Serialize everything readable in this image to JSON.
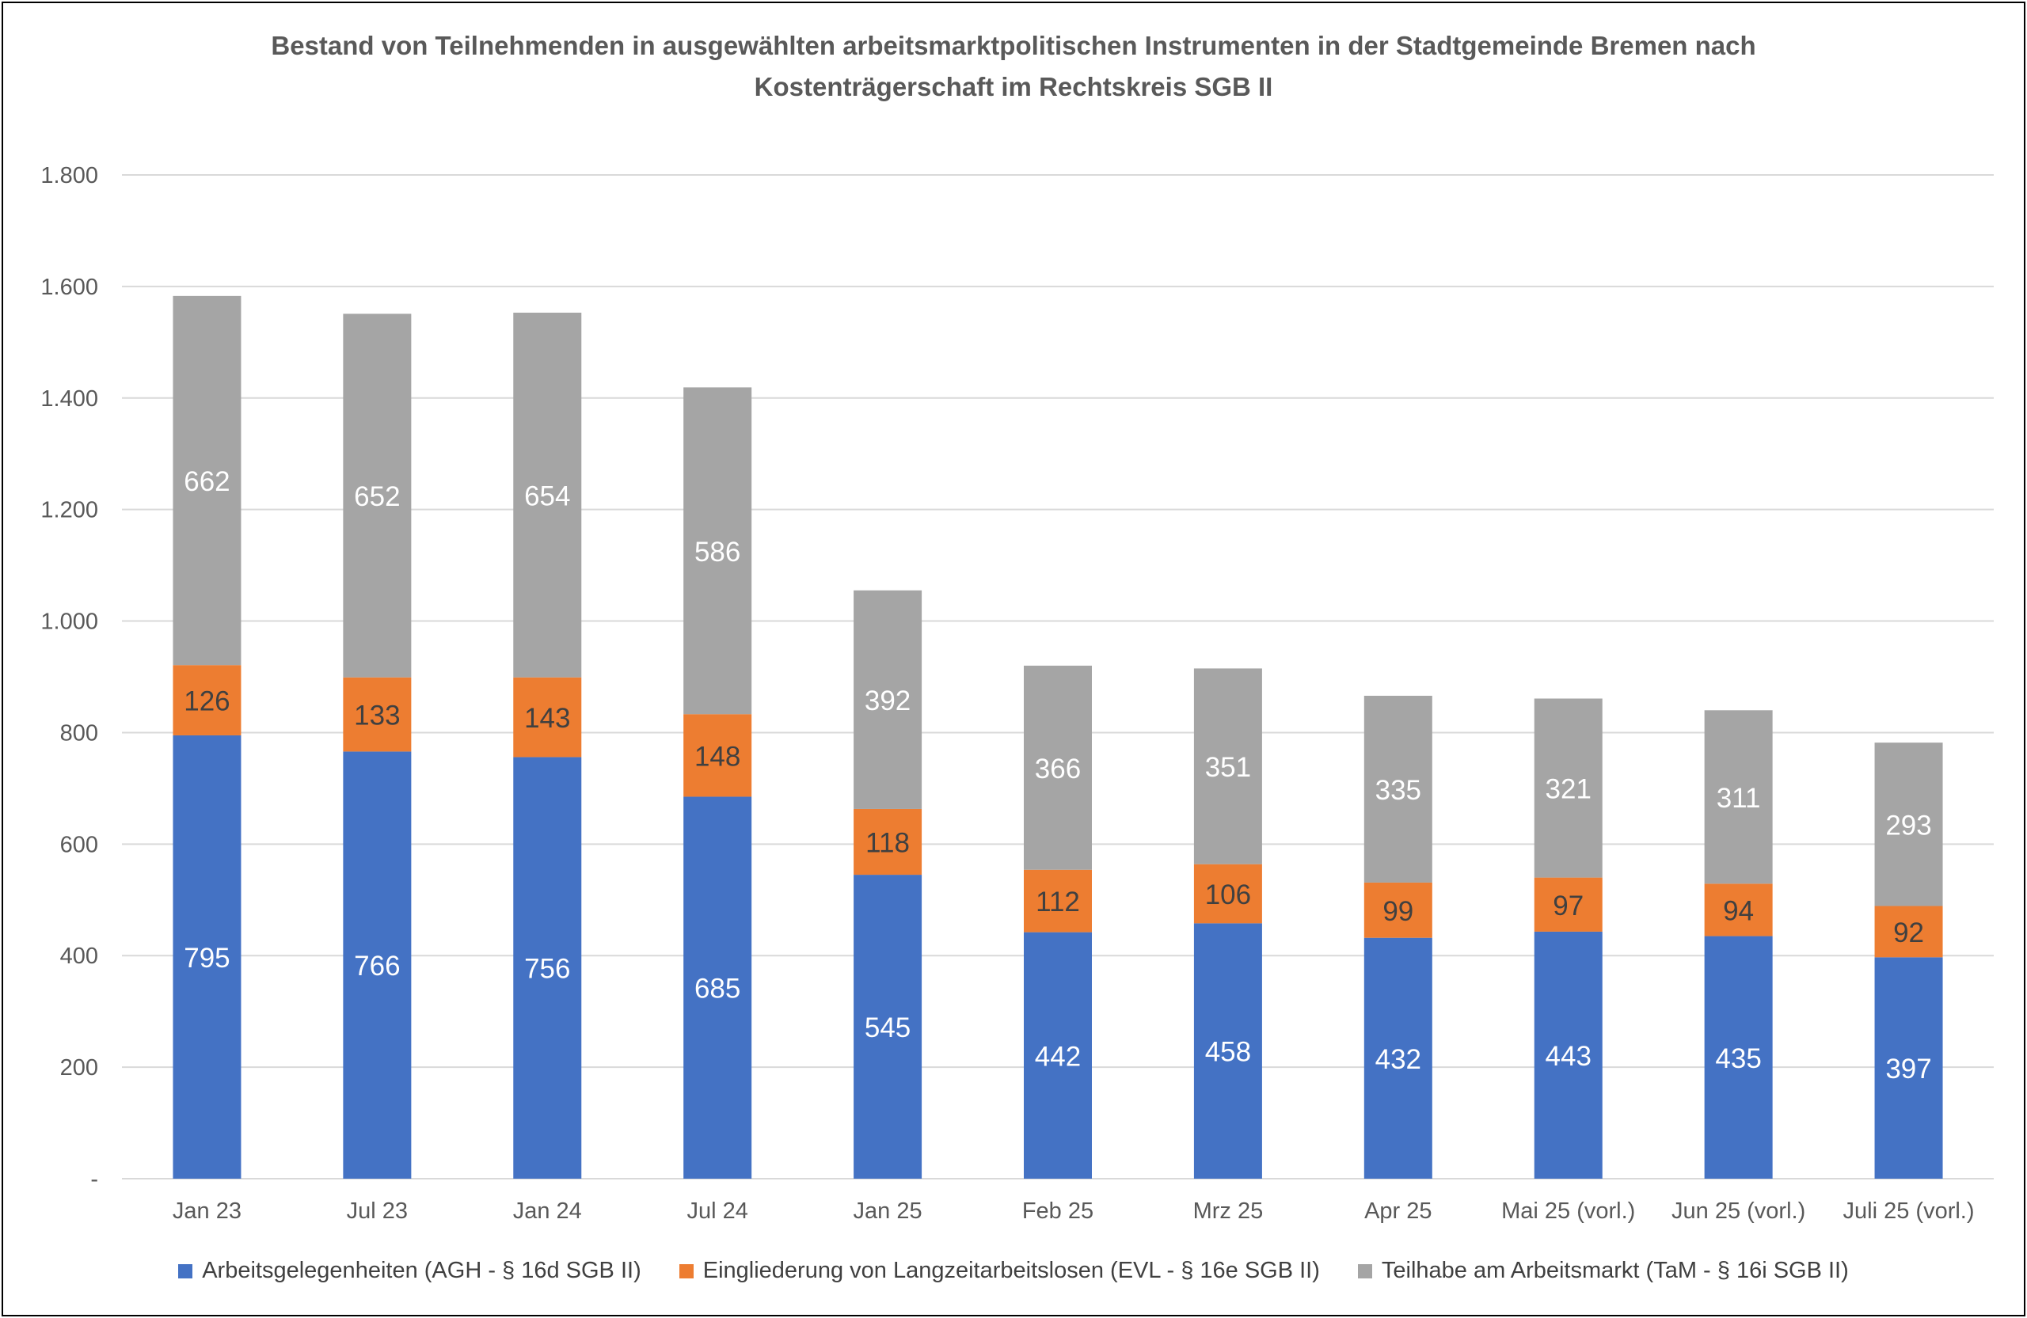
{
  "chart_title": {
    "line1": "Bestand von Teilnehmenden in ausgewählten arbeitsmarktpolitischen Instrumenten in der Stadtgemeinde Bremen nach",
    "line2": "Kostenträgerschaft im Rechtskreis SGB II"
  },
  "chart_data": {
    "type": "bar",
    "stacked": true,
    "title": "Bestand von Teilnehmenden in ausgewählten arbeitsmarktpolitischen Instrumenten in der Stadtgemeinde Bremen nach Kostenträgerschaft im Rechtskreis SGB II",
    "categories": [
      "Jan 23",
      "Jul 23",
      "Jan 24",
      "Jul 24",
      "Jan 25",
      "Feb 25",
      "Mrz 25",
      "Apr 25",
      "Mai 25 (vorl.)",
      "Jun 25 (vorl.)",
      "Juli 25 (vorl.)"
    ],
    "series": [
      {
        "name": "Arbeitsgelegenheiten (AGH - § 16d SGB II)",
        "color": "#4472C4",
        "label_color": "#ffffff",
        "values": [
          795,
          766,
          756,
          685,
          545,
          442,
          458,
          432,
          443,
          435,
          397
        ]
      },
      {
        "name": "Eingliederung von Langzeitarbeitslosen (EVL - § 16e SGB II)",
        "color": "#ED7D31",
        "label_color": "#404040",
        "values": [
          126,
          133,
          143,
          148,
          118,
          112,
          106,
          99,
          97,
          94,
          92
        ]
      },
      {
        "name": "Teilhabe am Arbeitsmarkt (TaM - § 16i SGB II)",
        "color": "#A5A5A5",
        "label_color": "#ffffff",
        "values": [
          662,
          652,
          654,
          586,
          392,
          366,
          351,
          335,
          321,
          311,
          293
        ]
      }
    ],
    "ylim": [
      0,
      1800
    ],
    "yticks": [
      0,
      200,
      400,
      600,
      800,
      1000,
      1200,
      1400,
      1600,
      1800
    ],
    "ytick_labels": [
      "-",
      "200",
      "400",
      "600",
      "800",
      "1.000",
      "1.200",
      "1.400",
      "1.600",
      "1.800"
    ],
    "xlabel": "",
    "ylabel": "",
    "grid": true,
    "legend_position": "bottom",
    "data_labels": true
  }
}
